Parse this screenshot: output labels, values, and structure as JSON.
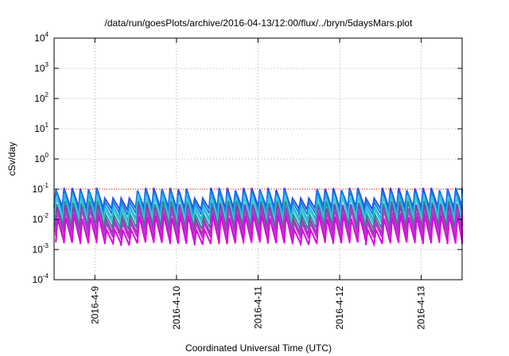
{
  "chart_data": {
    "type": "line",
    "title": "/data/run/goesPlots/archive/2016-04-13/12:00/flux/../bryn/5daysMars.plot",
    "xlabel": "Coordinated Universal Time (UTC)",
    "ylabel": "cSv/day",
    "x_axis": {
      "type": "date",
      "range": [
        "2016-04-08 12:00",
        "2016-04-13 12:00"
      ],
      "tick_dates": [
        "2016-04-09",
        "2016-04-10",
        "2016-04-11",
        "2016-04-12",
        "2016-04-13"
      ],
      "tick_labels": [
        "2016-4-9",
        "2016-4-10",
        "2016-4-11",
        "2016-4-12",
        "2016-4-13"
      ]
    },
    "y_axis": {
      "scale": "log",
      "ylim": [
        0.0001,
        10000
      ],
      "tick_exponents": [
        -4,
        -3,
        -2,
        -1,
        0,
        1,
        2,
        3,
        4
      ]
    },
    "grid": true,
    "reference_line": {
      "value": 0.1,
      "color": "#ff0000",
      "style": "dotted"
    },
    "pattern": {
      "description": "sawtooth oscillations, approx 10 cycles per day",
      "cycles_per_day": 10,
      "gaps_near": [
        "2016-04-09 03:00",
        "2016-04-09 09:00",
        "2016-04-10 06:00",
        "2016-04-11 12:00",
        "2016-04-12 09:00"
      ]
    },
    "series": [
      {
        "color": "#3050e0",
        "peak": 0.11,
        "trough": 0.026
      },
      {
        "color": "#1080e8",
        "peak": 0.09,
        "trough": 0.018
      },
      {
        "color": "#20b0e8",
        "peak": 0.07,
        "trough": 0.012
      },
      {
        "color": "#40c8d8",
        "peak": 0.06,
        "trough": 0.009
      },
      {
        "color": "#209090",
        "peak": 0.04,
        "trough": 0.006
      },
      {
        "color": "#a030b0",
        "peak": 0.03,
        "trough": 0.004
      },
      {
        "color": "#b040d0",
        "peak": 0.022,
        "trough": 0.003
      },
      {
        "color": "#e000e0",
        "peak": 0.014,
        "trough": 0.0018
      }
    ]
  }
}
